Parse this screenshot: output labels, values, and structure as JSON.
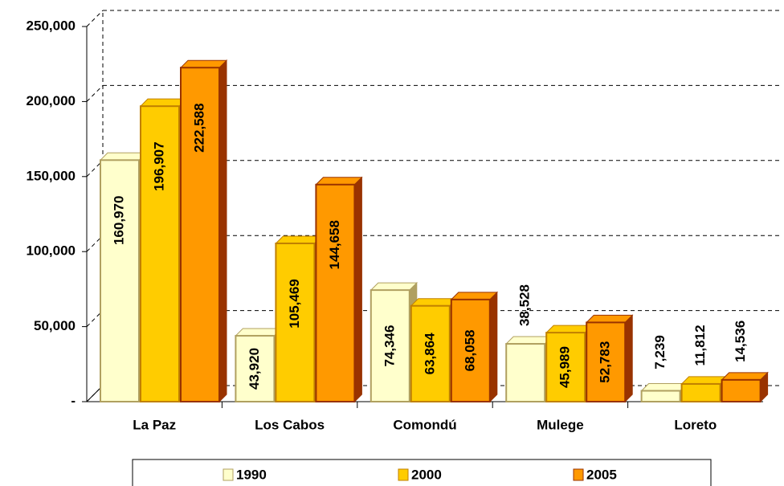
{
  "chart_data": {
    "type": "bar",
    "categories": [
      "La Paz",
      "Los Cabos",
      "Comondú",
      "Mulege",
      "Loreto"
    ],
    "series": [
      {
        "name": "1990",
        "color": "#FFFFCC",
        "values": [
          160970,
          43920,
          74346,
          38528,
          7239
        ],
        "value_labels": [
          "160,970",
          "43,920",
          "74,346",
          "38,528",
          "7,239"
        ]
      },
      {
        "name": "2000",
        "color": "#FFCC00",
        "values": [
          196907,
          105469,
          63864,
          45989,
          11812
        ],
        "value_labels": [
          "196,907",
          "105,469",
          "63,864",
          "45,989",
          "11,812"
        ]
      },
      {
        "name": "2005",
        "color": "#FF9900",
        "values": [
          222588,
          144658,
          68058,
          52783,
          14536
        ],
        "value_labels": [
          "222,588",
          "144,658",
          "68,058",
          "52,783",
          "14,536"
        ]
      }
    ],
    "ylim": [
      0,
      250000
    ],
    "yticks": [
      {
        "value": 0,
        "label": "-"
      },
      {
        "value": 50000,
        "label": "50,000"
      },
      {
        "value": 100000,
        "label": "100,000"
      },
      {
        "value": 150000,
        "label": "150,000"
      },
      {
        "value": 200000,
        "label": "200,000"
      },
      {
        "value": 250000,
        "label": "250,000"
      }
    ],
    "grid": true,
    "legend": "bottom"
  }
}
